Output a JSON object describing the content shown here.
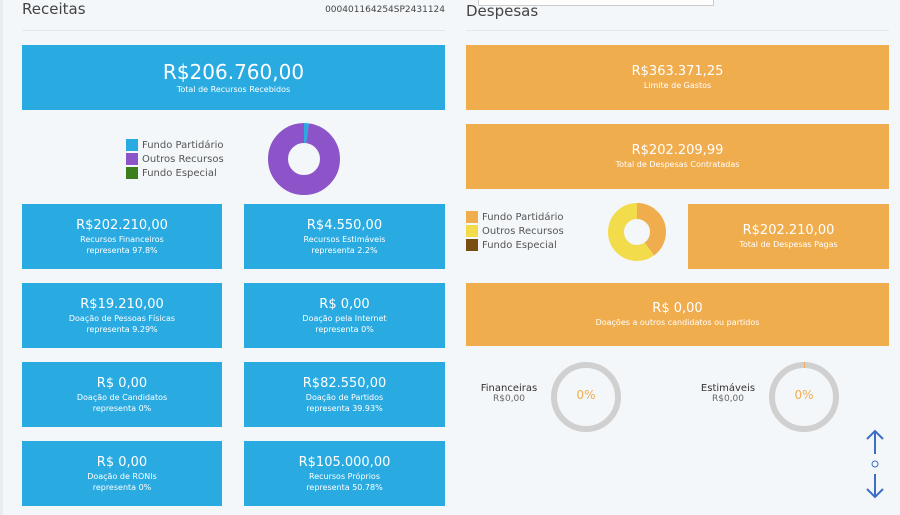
{
  "receitas": {
    "title": "Receitas",
    "code": "000401164254SP2431124",
    "total": {
      "amount": "R$206.760,00",
      "label": "Total de Recursos Recebidos"
    },
    "legend": [
      {
        "label": "Fundo Partidário",
        "color": "#29abe2"
      },
      {
        "label": "Outros Recursos",
        "color": "#8c54c8"
      },
      {
        "label": "Fundo Especial",
        "color": "#3c7d1e"
      }
    ],
    "donut": [
      {
        "name": "Fundo Partidário",
        "value": 2.2,
        "color": "#29abe2"
      },
      {
        "name": "Outros Recursos",
        "value": 97.8,
        "color": "#8c54c8"
      }
    ],
    "cards": [
      {
        "amount": "R$202.210,00",
        "label": "Recursos Financeiros",
        "pct": "representa 97.8%"
      },
      {
        "amount": "R$4.550,00",
        "label": "Recursos Estimáveis",
        "pct": "representa 2.2%"
      },
      {
        "amount": "R$19.210,00",
        "label": "Doação de Pessoas Físicas",
        "pct": "representa 9.29%"
      },
      {
        "amount": "R$ 0,00",
        "label": "Doação pela Internet",
        "pct": "representa 0%"
      },
      {
        "amount": "R$ 0,00",
        "label": "Doação de Candidatos",
        "pct": "representa 0%"
      },
      {
        "amount": "R$82.550,00",
        "label": "Doação de Partidos",
        "pct": "representa 39.93%"
      },
      {
        "amount": "R$ 0,00",
        "label": "Doação de RONIs",
        "pct": "representa 0%"
      },
      {
        "amount": "R$105.000,00",
        "label": "Recursos Próprios",
        "pct": "representa 50.78%"
      }
    ]
  },
  "despesas": {
    "title": "Despesas",
    "limite": {
      "amount": "R$363.371,25",
      "label": "Limite de Gastos"
    },
    "contratadas": {
      "amount": "R$202.209,99",
      "label": "Total de Despesas Contratadas"
    },
    "pagas": {
      "amount": "R$202.210,00",
      "label": "Total de Despesas Pagas"
    },
    "legend": [
      {
        "label": "Fundo Partidário",
        "color": "#f0ad4e"
      },
      {
        "label": "Outros Recursos",
        "color": "#f3dc4c"
      },
      {
        "label": "Fundo Especial",
        "color": "#7a4d12"
      }
    ],
    "donut": [
      {
        "name": "Fundo Partidário",
        "value": 40,
        "color": "#f0ad4e"
      },
      {
        "name": "Outros Recursos",
        "value": 60,
        "color": "#f3dc4c"
      }
    ],
    "doacoes": {
      "amount": "R$ 0,00",
      "label": "Doações a outros candidatos ou partidos"
    },
    "gauges": [
      {
        "label": "Financeiras",
        "value": "R$0,00",
        "pct": "0%",
        "fill": 0
      },
      {
        "label": "Estimáveis",
        "value": "R$0,00",
        "pct": "0%",
        "fill": 0.005
      }
    ]
  }
}
